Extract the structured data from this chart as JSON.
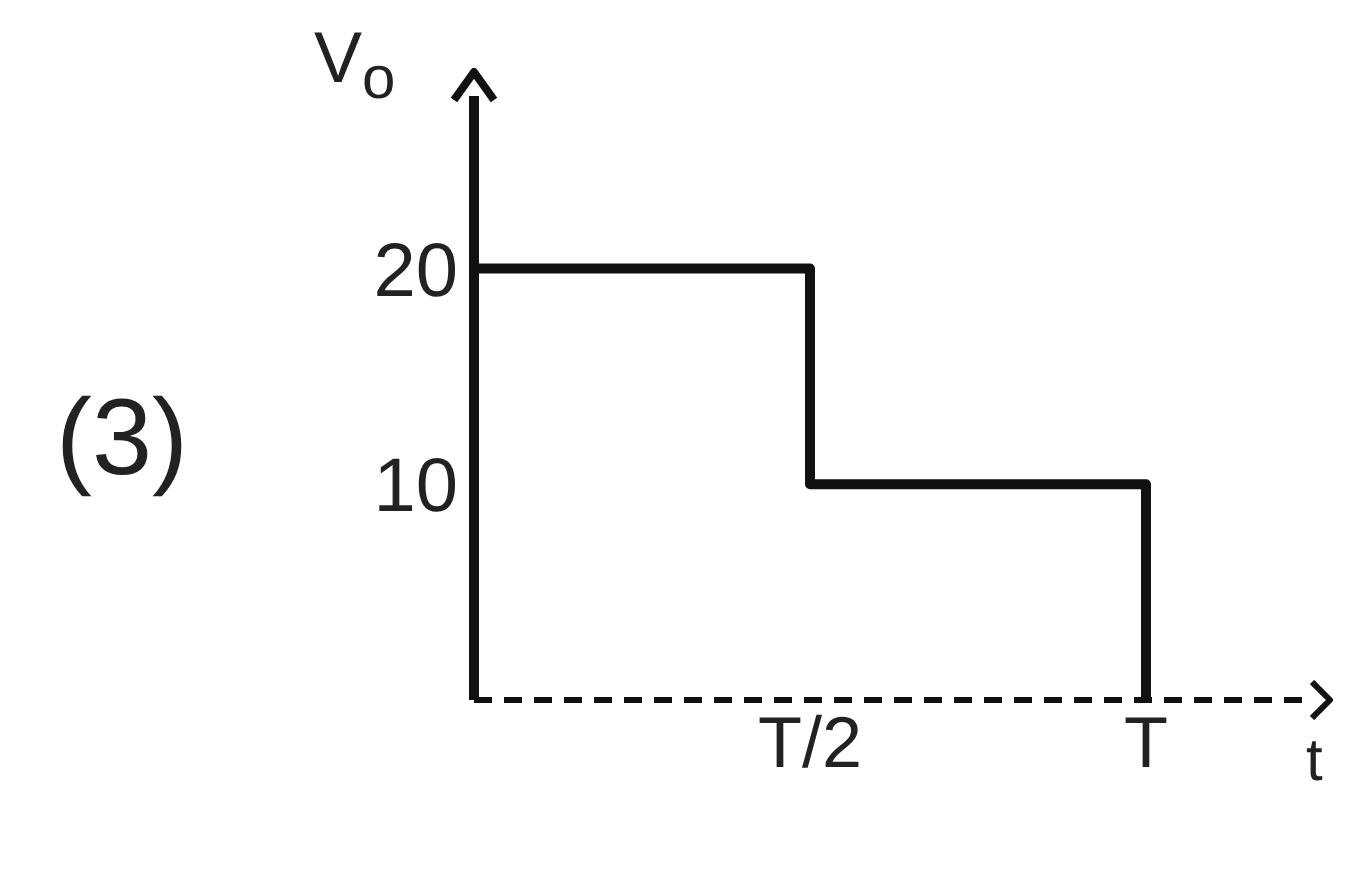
{
  "chart_data": {
    "type": "step",
    "xlabel": "t",
    "ylabel": "V$_{o}$",
    "annotations": [
      "(3)"
    ],
    "categories": [
      null,
      "T/2",
      "T"
    ],
    "ylim": [
      0,
      28
    ],
    "yticks": [
      10,
      20
    ],
    "series": [
      {
        "color": "#111111",
        "line_style": "solid",
        "values": [
          20,
          10,
          0
        ]
      }
    ]
  }
}
